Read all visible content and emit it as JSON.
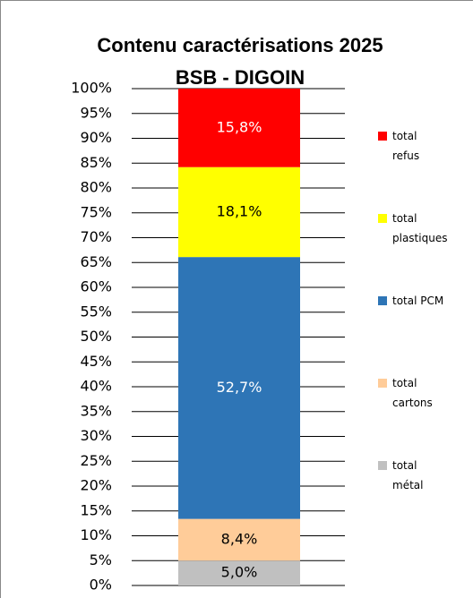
{
  "chart_data": {
    "type": "stacked_bar",
    "title": [
      "Contenu caractérisations 2025",
      "BSB - DIGOIN"
    ],
    "categories": [
      null
    ],
    "series": [
      {
        "name": "total métal",
        "color": "#c0c0c0",
        "values": [
          5.0
        ],
        "value_labels": [
          "5,0%"
        ]
      },
      {
        "name": "total cartons",
        "color": "#ffcc99",
        "values": [
          8.4
        ],
        "value_labels": [
          "8,4%"
        ]
      },
      {
        "name": "total PCM",
        "color": "#2e75b6",
        "values": [
          52.7
        ],
        "value_labels": [
          "52,7%"
        ]
      },
      {
        "name": "total plastiques",
        "color": "#ffff00",
        "values": [
          18.1
        ],
        "value_labels": [
          "18,1%"
        ]
      },
      {
        "name": "total refus",
        "color": "#ff0000",
        "values": [
          15.8
        ],
        "value_labels": [
          "15,8%"
        ]
      }
    ],
    "ylim": [
      0,
      100
    ],
    "yticks": [
      {
        "value": 0,
        "label": "0%"
      },
      {
        "value": 5,
        "label": "5%"
      },
      {
        "value": 10,
        "label": "10%"
      },
      {
        "value": 15,
        "label": "15%"
      },
      {
        "value": 20,
        "label": "20%"
      },
      {
        "value": 25,
        "label": "25%"
      },
      {
        "value": 30,
        "label": "30%"
      },
      {
        "value": 35,
        "label": "35%"
      },
      {
        "value": 40,
        "label": "40%"
      },
      {
        "value": 45,
        "label": "45%"
      },
      {
        "value": 50,
        "label": "50%"
      },
      {
        "value": 55,
        "label": "55%"
      },
      {
        "value": 60,
        "label": "60%"
      },
      {
        "value": 65,
        "label": "65%"
      },
      {
        "value": 70,
        "label": "70%"
      },
      {
        "value": 75,
        "label": "75%"
      },
      {
        "value": 80,
        "label": "80%"
      },
      {
        "value": 85,
        "label": "85%"
      },
      {
        "value": 90,
        "label": "90%"
      },
      {
        "value": 95,
        "label": "95%"
      },
      {
        "value": 100,
        "label": "100%"
      }
    ],
    "grid": true,
    "legend": "right"
  }
}
